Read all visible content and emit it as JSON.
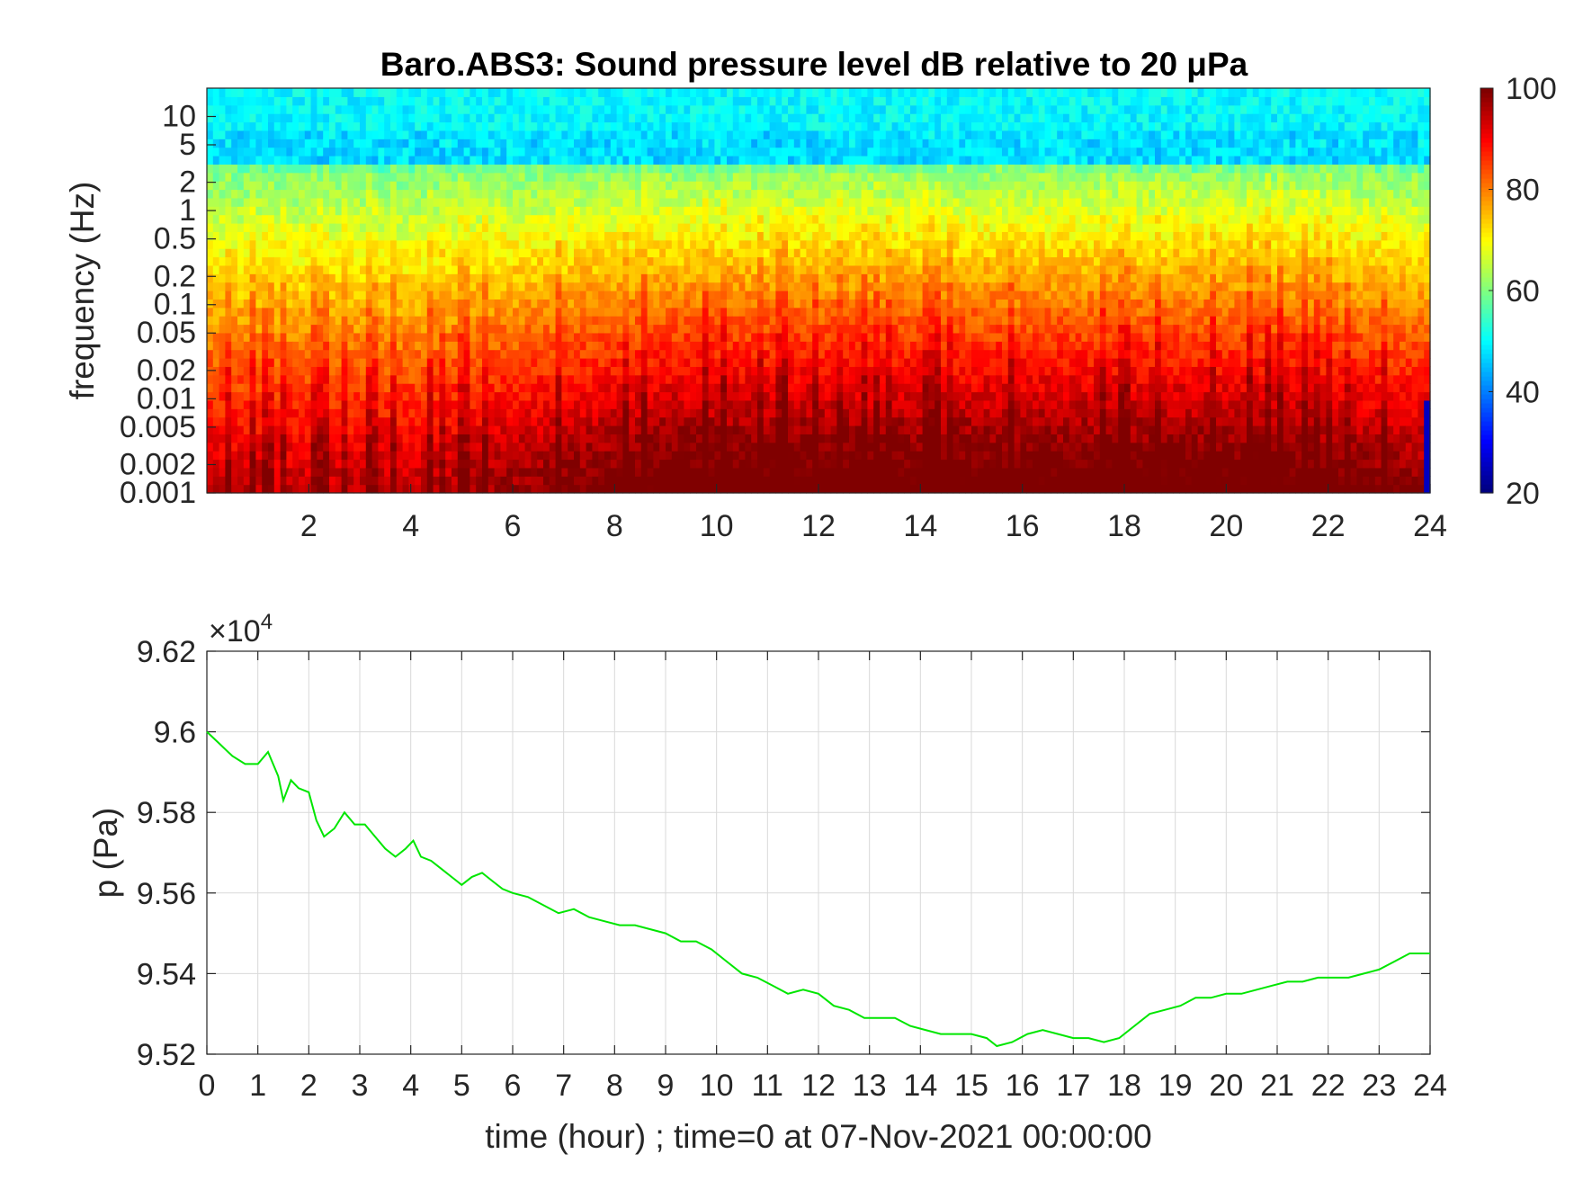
{
  "chart_data": [
    {
      "type": "heatmap",
      "title": "Baro.ABS3: Sound pressure level dB relative to 20 μPa",
      "ylabel": "frequency (Hz)",
      "xlabel": "",
      "x_range": [
        0,
        24
      ],
      "x_ticks": [
        2,
        4,
        6,
        8,
        10,
        12,
        14,
        16,
        18,
        20,
        22,
        24
      ],
      "y_scale": "log",
      "y_range": [
        0.001,
        20
      ],
      "y_ticks": [
        0.001,
        0.002,
        0.005,
        0.01,
        0.02,
        0.05,
        0.1,
        0.2,
        0.5,
        1,
        2,
        5,
        10
      ],
      "y_tick_labels": [
        "0.001",
        "0.002",
        "0.005",
        "0.01",
        "0.02",
        "0.05",
        "0.1",
        "0.2",
        "0.5",
        "1",
        "2",
        "5",
        "10"
      ],
      "colormap": "jet",
      "colorbar": {
        "range": [
          20,
          100
        ],
        "ticks": [
          20,
          40,
          60,
          80,
          100
        ],
        "position": "right"
      },
      "description": "Spectrogram: high levels (~90-100 dB) at low frequencies (<0.01 Hz), decreasing to ~50 dB above 5 Hz; stronger broadband energy between hours 6 and 20."
    },
    {
      "type": "line",
      "ylabel": "p (Pa)",
      "xlabel": "time (hour) ; time=0 at 07-Nov-2021 00:00:00",
      "x_range": [
        0,
        24
      ],
      "x_ticks": [
        0,
        1,
        2,
        3,
        4,
        5,
        6,
        7,
        8,
        9,
        10,
        11,
        12,
        13,
        14,
        15,
        16,
        17,
        18,
        19,
        20,
        21,
        22,
        23,
        24
      ],
      "y_range": [
        9.52,
        9.62
      ],
      "y_ticks": [
        9.52,
        9.54,
        9.56,
        9.58,
        9.6,
        9.62
      ],
      "y_multiplier": "×10",
      "y_multiplier_exp": "4",
      "grid": true,
      "color": "#00e600",
      "series": [
        {
          "x": [
            0,
            0.25,
            0.5,
            0.75,
            1,
            1.2,
            1.4,
            1.5,
            1.65,
            1.8,
            2,
            2.15,
            2.3,
            2.5,
            2.7,
            2.9,
            3.1,
            3.3,
            3.5,
            3.7,
            3.9,
            4.05,
            4.2,
            4.4,
            4.6,
            4.8,
            5,
            5.2,
            5.4,
            5.6,
            5.8,
            6,
            6.3,
            6.6,
            6.9,
            7.2,
            7.5,
            7.8,
            8.1,
            8.4,
            8.7,
            9,
            9.3,
            9.6,
            9.9,
            10.2,
            10.5,
            10.8,
            11.1,
            11.4,
            11.7,
            12,
            12.3,
            12.6,
            12.9,
            13.2,
            13.5,
            13.8,
            14.1,
            14.4,
            14.7,
            15,
            15.3,
            15.5,
            15.8,
            16.1,
            16.4,
            16.7,
            17,
            17.3,
            17.6,
            17.9,
            18.2,
            18.5,
            18.8,
            19.1,
            19.4,
            19.7,
            20,
            20.3,
            20.6,
            20.9,
            21.2,
            21.5,
            21.8,
            22.1,
            22.4,
            22.7,
            23,
            23.3,
            23.6,
            24
          ],
          "y": [
            9.6,
            9.597,
            9.594,
            9.592,
            9.592,
            9.595,
            9.589,
            9.583,
            9.588,
            9.586,
            9.585,
            9.578,
            9.574,
            9.576,
            9.58,
            9.577,
            9.577,
            9.574,
            9.571,
            9.569,
            9.571,
            9.573,
            9.569,
            9.568,
            9.566,
            9.564,
            9.562,
            9.564,
            9.565,
            9.563,
            9.561,
            9.56,
            9.559,
            9.557,
            9.555,
            9.556,
            9.554,
            9.553,
            9.552,
            9.552,
            9.551,
            9.55,
            9.548,
            9.548,
            9.546,
            9.543,
            9.54,
            9.539,
            9.537,
            9.535,
            9.536,
            9.535,
            9.532,
            9.531,
            9.529,
            9.529,
            9.529,
            9.527,
            9.526,
            9.525,
            9.525,
            9.525,
            9.524,
            9.522,
            9.523,
            9.525,
            9.526,
            9.525,
            9.524,
            9.524,
            9.523,
            9.524,
            9.527,
            9.53,
            9.531,
            9.532,
            9.534,
            9.534,
            9.535,
            9.535,
            9.536,
            9.537,
            9.538,
            9.538,
            9.539,
            9.539,
            9.539,
            9.54,
            9.541,
            9.543,
            9.545,
            9.545
          ]
        }
      ]
    }
  ]
}
